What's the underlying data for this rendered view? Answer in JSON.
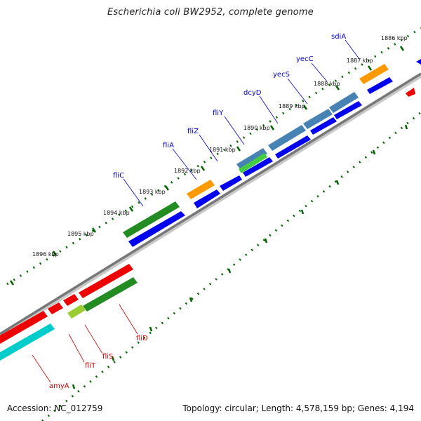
{
  "title": "Escherichia coli BW2952, complete genome",
  "accession": "Accession: NC_012759",
  "topology_info": "Topology: circular; Length: 4,578,159 bp; Genes: 4,194",
  "colors": {
    "cds": "#0000ee",
    "gene_green": "#228b22",
    "gene_orange": "#ff9900",
    "gene_steel": "#4682b4",
    "gene_red": "#ee0000",
    "gene_cyan": "#00cccc",
    "label_blue": "#0000cc",
    "label_red": "#cc0000",
    "tick": "#006400",
    "backbone": "#888888"
  },
  "scale_labels": [
    {
      "text": "1886 kbp",
      "kbp": 1886
    },
    {
      "text": "1887 kbp",
      "kbp": 1887
    },
    {
      "text": "1888 kbp",
      "kbp": 1888
    },
    {
      "text": "1889 kbp",
      "kbp": 1889
    },
    {
      "text": "1890 kbp",
      "kbp": 1890
    },
    {
      "text": "1891 kbp",
      "kbp": 1891
    },
    {
      "text": "1892 kbp",
      "kbp": 1892
    },
    {
      "text": "1893 kbp",
      "kbp": 1893
    },
    {
      "text": "1894 kbp",
      "kbp": 1894
    },
    {
      "text": "1895 kbp",
      "kbp": 1895
    },
    {
      "text": "1896 kbp",
      "kbp": 1896
    }
  ],
  "genes": [
    {
      "name": "sdiA",
      "strand": "plus",
      "color": "orange"
    },
    {
      "name": "yecC",
      "strand": "plus",
      "color": "steel"
    },
    {
      "name": "yecS",
      "strand": "plus",
      "color": "steel"
    },
    {
      "name": "dcyD",
      "strand": "plus",
      "color": "steel"
    },
    {
      "name": "fliY",
      "strand": "plus",
      "color": "steel"
    },
    {
      "name": "fliZ",
      "strand": "plus",
      "color": "green"
    },
    {
      "name": "fliA",
      "strand": "plus",
      "color": "orange"
    },
    {
      "name": "fliC",
      "strand": "plus",
      "color": "green"
    },
    {
      "name": "fliD",
      "strand": "minus",
      "color": "green"
    },
    {
      "name": "fliS",
      "strand": "minus",
      "color": "red"
    },
    {
      "name": "fliT",
      "strand": "minus",
      "color": "red"
    },
    {
      "name": "amyA",
      "strand": "minus",
      "color": "cyan"
    }
  ]
}
